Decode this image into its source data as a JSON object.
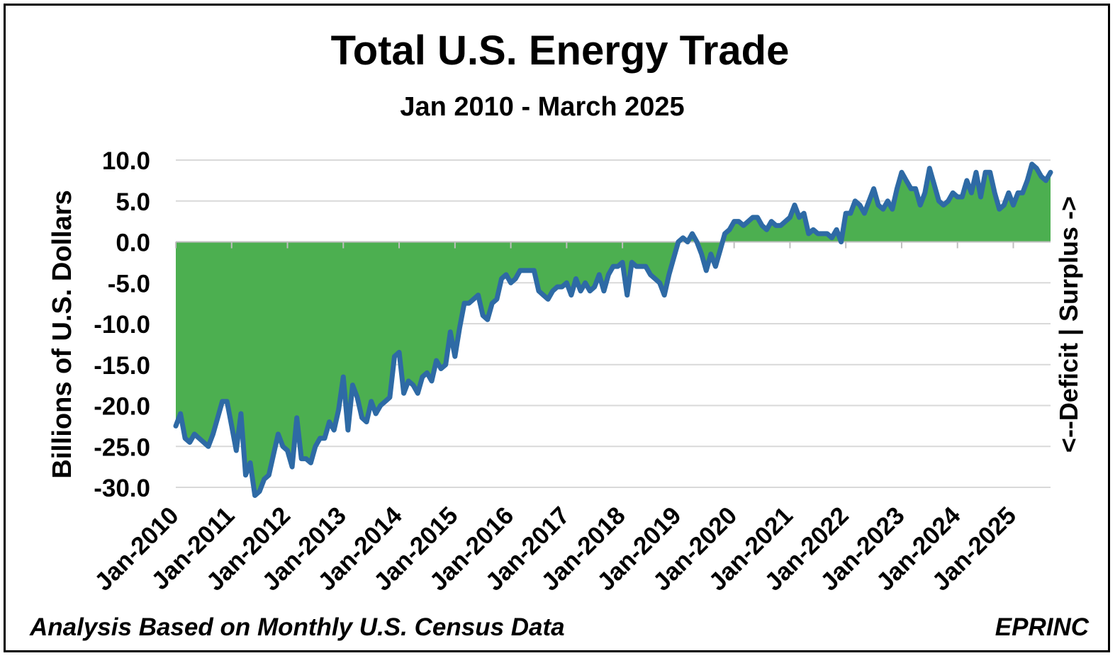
{
  "chart_data": {
    "type": "area",
    "title": "Total U.S. Energy Trade",
    "subtitle": "Jan 2010 - March 2025",
    "ylabel": "Billions of U.S. Dollars",
    "right_label": "<--Deficit | Surplus ->",
    "ylim": [
      -30,
      10
    ],
    "yticks": [
      10,
      5,
      0,
      -5,
      -10,
      -15,
      -20,
      -25,
      -30
    ],
    "ytick_labels": [
      "10.0",
      "5.0",
      "0.0",
      "-5.0",
      "-10.0",
      "-15.0",
      "-20.0",
      "-25.0",
      "-30.0"
    ],
    "xtick_labels": [
      "Jan-2010",
      "Jan-2011",
      "Jan-2012",
      "Jan-2013",
      "Jan-2014",
      "Jan-2015",
      "Jan-2016",
      "Jan-2017",
      "Jan-2018",
      "Jan-2019",
      "Jan-2020",
      "Jan-2021",
      "Jan-2022",
      "Jan-2023",
      "Jan-2024",
      "Jan-2025"
    ],
    "grid": true,
    "fill_color": "#4caf50",
    "line_color": "#2e6aa5",
    "series": [
      {
        "start": "2010-01",
        "frequency": "monthly",
        "values": [
          -22.5,
          -21.0,
          -24.0,
          -24.5,
          -23.5,
          -24.0,
          -24.5,
          -25.0,
          -23.5,
          -21.5,
          -19.5,
          -19.5,
          -22.5,
          -25.5,
          -21.0,
          -28.5,
          -27.0,
          -31.0,
          -30.5,
          -29.0,
          -28.5,
          -26.0,
          -23.5,
          -25.0,
          -25.5,
          -27.5,
          -21.5,
          -26.5,
          -26.5,
          -27.0,
          -25.0,
          -24.0,
          -24.0,
          -22.0,
          -23.0,
          -20.5,
          -16.5,
          -23.0,
          -17.5,
          -19.0,
          -21.5,
          -22.0,
          -19.5,
          -21.0,
          -20.0,
          -19.5,
          -19.0,
          -14.0,
          -13.5,
          -18.5,
          -17.0,
          -17.5,
          -18.5,
          -16.5,
          -16.0,
          -17.0,
          -14.5,
          -15.5,
          -15.0,
          -11.0,
          -14.0,
          -10.5,
          -7.5,
          -7.5,
          -7.0,
          -6.5,
          -9.0,
          -9.5,
          -7.5,
          -7.0,
          -4.5,
          -4.0,
          -5.0,
          -4.5,
          -3.5,
          -3.5,
          -3.5,
          -3.5,
          -6.0,
          -6.5,
          -7.0,
          -6.0,
          -5.5,
          -5.5,
          -5.0,
          -6.5,
          -4.5,
          -6.0,
          -5.0,
          -6.0,
          -5.5,
          -4.0,
          -6.0,
          -4.0,
          -3.0,
          -3.0,
          -2.5,
          -6.5,
          -2.5,
          -3.0,
          -3.0,
          -3.0,
          -4.0,
          -4.5,
          -5.0,
          -6.5,
          -4.0,
          -2.0,
          0.0,
          0.5,
          0.0,
          1.0,
          0.0,
          -1.5,
          -3.5,
          -1.5,
          -3.0,
          -1.0,
          1.0,
          1.5,
          2.5,
          2.5,
          2.0,
          2.5,
          3.0,
          3.0,
          2.0,
          1.5,
          2.5,
          2.0,
          2.0,
          2.5,
          3.0,
          4.5,
          3.0,
          3.5,
          1.0,
          1.5,
          1.0,
          1.0,
          1.0,
          0.5,
          1.5,
          0.0,
          3.5,
          3.5,
          5.0,
          4.5,
          3.5,
          5.0,
          6.5,
          4.5,
          4.0,
          5.0,
          4.0,
          6.5,
          8.5,
          7.5,
          6.5,
          6.5,
          4.5,
          6.0,
          9.0,
          7.0,
          5.0,
          4.5,
          5.0,
          6.0,
          5.5,
          5.5,
          7.5,
          6.0,
          8.5,
          5.5,
          8.5,
          8.5,
          6.0,
          4.0,
          4.5,
          6.0,
          4.5,
          6.0,
          6.0,
          7.5,
          9.5,
          9.0,
          8.0,
          7.5,
          8.5
        ]
      }
    ]
  },
  "footer": {
    "note": "Analysis Based on Monthly U.S. Census Data",
    "source": "EPRINC"
  }
}
